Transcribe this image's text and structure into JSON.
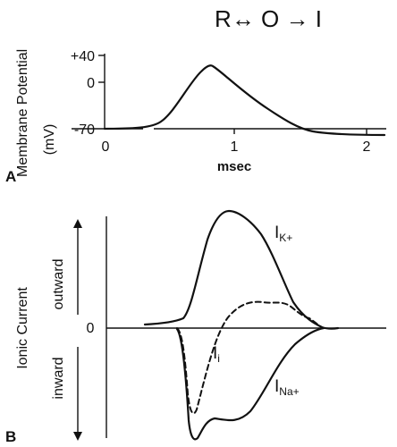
{
  "header": {
    "scheme": "R↔ O → I"
  },
  "panel_a": {
    "letter": "A",
    "ylabel_top": "Membrane Potential",
    "ylabel_unit": "(mV)",
    "yticks": [
      "+40",
      "0",
      "-70"
    ],
    "xticks": [
      "0",
      "1",
      "2"
    ],
    "xlabel": "msec"
  },
  "panel_b": {
    "letter": "B",
    "ylabel": "Ionic Current",
    "outward_label": "outward",
    "inward_label": "inward",
    "zero_label": "0",
    "ik_label": "I",
    "ik_sub": "K+",
    "ii_label": "I",
    "ii_sub": "i",
    "ina_label": "I",
    "ina_sub": "Na+"
  }
}
